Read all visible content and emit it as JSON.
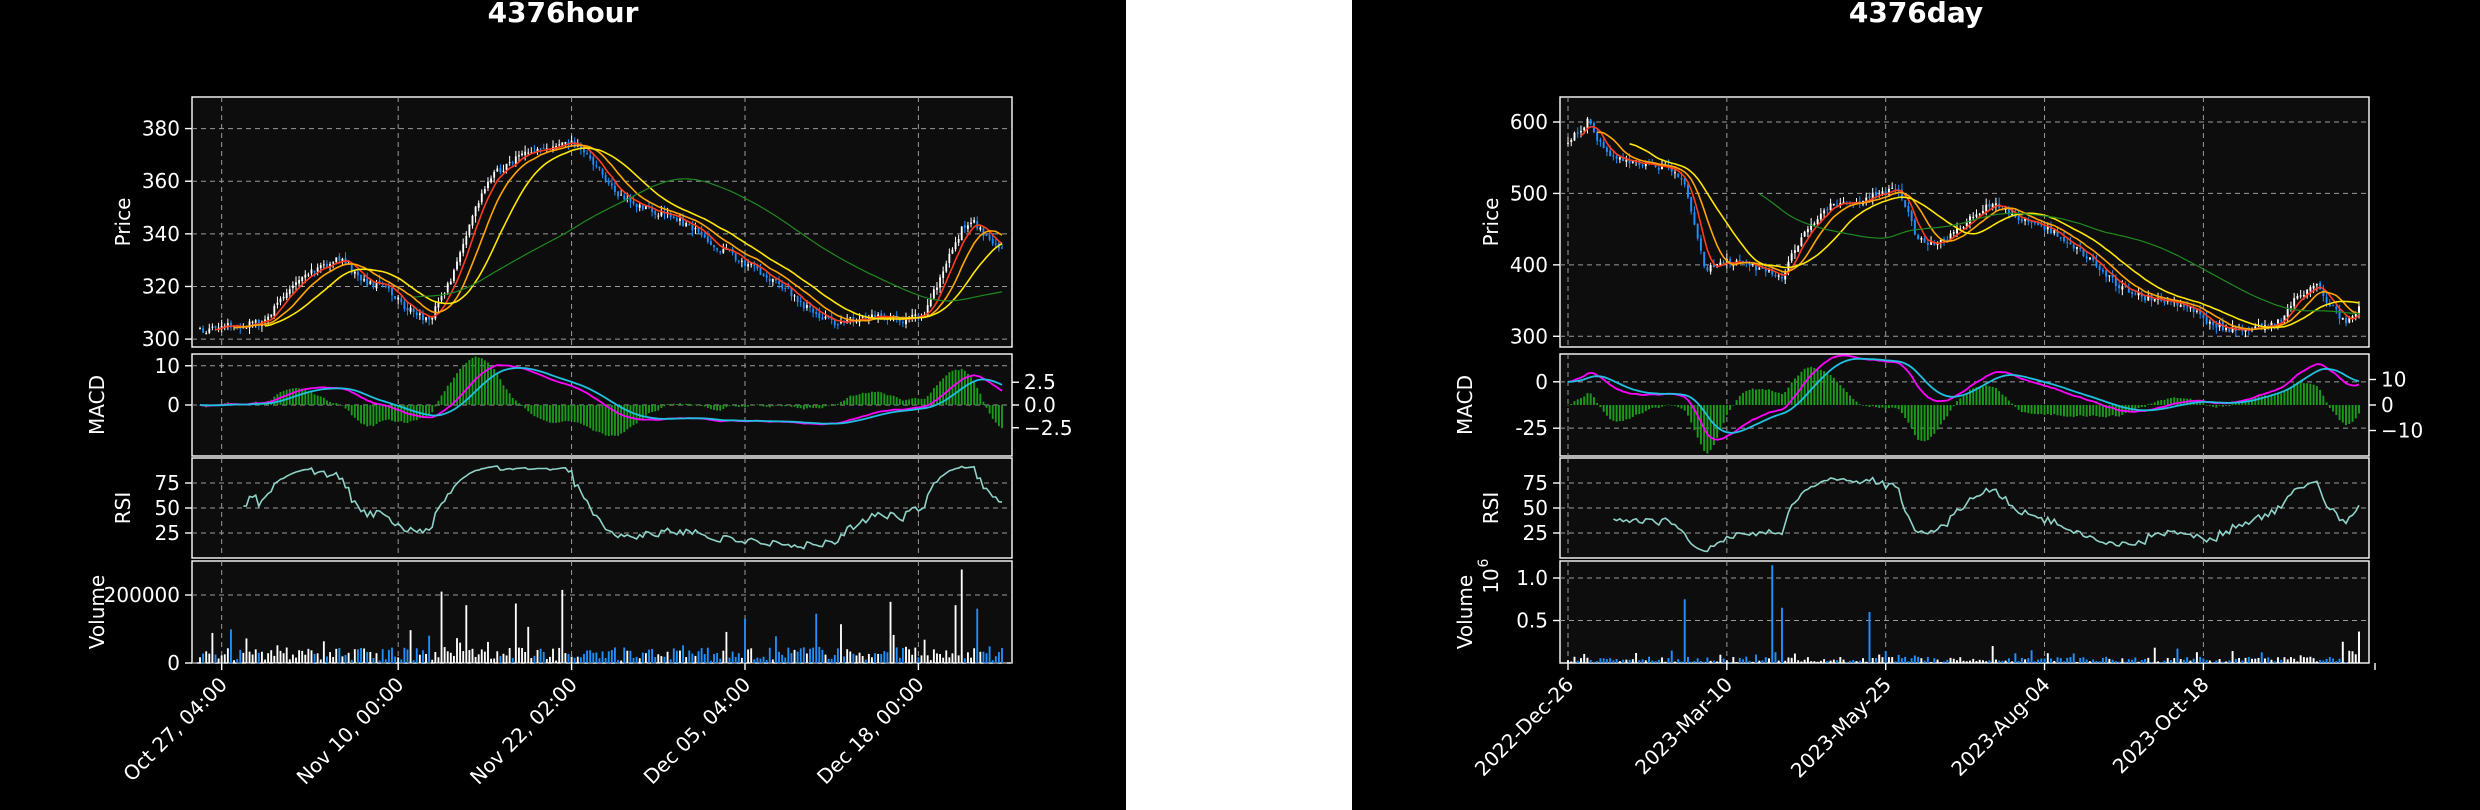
{
  "colors": {
    "background": "#000000",
    "panel_face": "#0d0d0d",
    "axis": "#ffffff",
    "grid": "#9a9a9a",
    "candle_up": "#ffffff",
    "candle_down": "#1e90ff",
    "ma_fast": "#ff3b1f",
    "ma_mid": "#ffa500",
    "ma_slow": "#ffe600",
    "ma_long": "#1f8a1f",
    "macd_line": "#ff00ff",
    "signal_line": "#20c0e0",
    "histogram": "#1a9c1a",
    "rsi_line": "#8fd3c8",
    "volume_up": "#ffffff",
    "volume_down": "#1e90ff"
  },
  "chart_data": [
    {
      "type": "candlestick",
      "title": "4376hour",
      "x_tick_labels": [
        "Oct 27, 04:00",
        "Nov 10, 00:00",
        "Nov 22, 02:00",
        "Dec 05, 04:00",
        "Dec 18, 00:00"
      ],
      "n_bars": 260,
      "x_tick_bar_index": [
        7,
        64,
        120,
        176,
        232
      ],
      "grid": true,
      "panels": {
        "price": {
          "ylabel": "Price",
          "ylim": [
            297,
            392
          ],
          "yticks": [
            300,
            320,
            340,
            360,
            380
          ],
          "close_anchors": [
            [
              0,
              303
            ],
            [
              10,
              305
            ],
            [
              20,
              306
            ],
            [
              28,
              318
            ],
            [
              38,
              327
            ],
            [
              46,
              331
            ],
            [
              52,
              322
            ],
            [
              60,
              320
            ],
            [
              66,
              312
            ],
            [
              74,
              307
            ],
            [
              82,
              325
            ],
            [
              88,
              348
            ],
            [
              94,
              362
            ],
            [
              104,
              370
            ],
            [
              114,
              373
            ],
            [
              120,
              375
            ],
            [
              126,
              368
            ],
            [
              134,
              356
            ],
            [
              142,
              350
            ],
            [
              152,
              347
            ],
            [
              160,
              341
            ],
            [
              166,
              335
            ],
            [
              172,
              332
            ],
            [
              180,
              326
            ],
            [
              188,
              320
            ],
            [
              196,
              312
            ],
            [
              204,
              306
            ],
            [
              210,
              307
            ],
            [
              218,
              309
            ],
            [
              226,
              307
            ],
            [
              234,
              310
            ],
            [
              240,
              326
            ],
            [
              246,
              342
            ],
            [
              250,
              344
            ],
            [
              256,
              336
            ],
            [
              259,
              334
            ]
          ],
          "moving_averages": [
            {
              "name": "MA fast",
              "window": 6,
              "color_key": "ma_fast"
            },
            {
              "name": "MA mid",
              "window": 12,
              "color_key": "ma_mid"
            },
            {
              "name": "MA slow",
              "window": 22,
              "color_key": "ma_slow"
            },
            {
              "name": "MA long",
              "window": 70,
              "color_key": "ma_long"
            }
          ]
        },
        "macd": {
          "ylabel": "MACD",
          "ylim": [
            -13,
            13
          ],
          "yticks": [
            0,
            10
          ],
          "right_ylim": [
            -5.6,
            5.6
          ],
          "right_yticks": [
            "2.5",
            "0.0",
            "−2.5"
          ],
          "right_ytick_values": [
            2.5,
            0.0,
            -2.5
          ]
        },
        "rsi": {
          "ylabel": "RSI",
          "ylim": [
            0,
            100
          ],
          "yticks": [
            25,
            50,
            75
          ],
          "start_index": 14
        },
        "volume": {
          "ylabel": "Volume",
          "ylim": [
            0,
            300000
          ],
          "yticks": [
            0,
            200000
          ],
          "ytick_labels": [
            "0",
            "200000"
          ],
          "typical": 25000,
          "peaks": [
            [
              78,
              210000
            ],
            [
              86,
              170000
            ],
            [
              102,
              175000
            ],
            [
              117,
              215000
            ],
            [
              176,
              130000
            ],
            [
              199,
              145000
            ],
            [
              223,
              180000
            ],
            [
              244,
              170000
            ],
            [
              246,
              275000
            ],
            [
              251,
              160000
            ]
          ]
        }
      }
    },
    {
      "type": "candlestick",
      "title": "4376day",
      "x_tick_labels": [
        "2022-Dec-26",
        "2023-Mar-10",
        "2023-May-25",
        "2023-Aug-04",
        "2023-Oct-18"
      ],
      "n_bars": 245,
      "x_tick_bar_index": [
        0,
        49,
        98,
        147,
        196
      ],
      "grid": true,
      "panels": {
        "price": {
          "ylabel": "Price",
          "ylim": [
            285,
            635
          ],
          "yticks": [
            300,
            400,
            500,
            600
          ],
          "close_anchors": [
            [
              0,
              575
            ],
            [
              6,
              600
            ],
            [
              12,
              555
            ],
            [
              22,
              540
            ],
            [
              32,
              535
            ],
            [
              36,
              515
            ],
            [
              42,
              395
            ],
            [
              50,
              405
            ],
            [
              60,
              395
            ],
            [
              66,
              385
            ],
            [
              72,
              440
            ],
            [
              80,
              480
            ],
            [
              90,
              490
            ],
            [
              96,
              500
            ],
            [
              102,
              505
            ],
            [
              108,
              435
            ],
            [
              114,
              430
            ],
            [
              118,
              440
            ],
            [
              124,
              465
            ],
            [
              130,
              485
            ],
            [
              136,
              475
            ],
            [
              142,
              460
            ],
            [
              150,
              445
            ],
            [
              158,
              420
            ],
            [
              164,
              395
            ],
            [
              170,
              370
            ],
            [
              178,
              355
            ],
            [
              186,
              350
            ],
            [
              192,
              340
            ],
            [
              198,
              318
            ],
            [
              206,
              308
            ],
            [
              214,
              312
            ],
            [
              220,
              320
            ],
            [
              224,
              350
            ],
            [
              230,
              375
            ],
            [
              236,
              340
            ],
            [
              240,
              315
            ],
            [
              244,
              340
            ]
          ],
          "moving_averages": [
            {
              "name": "MA fast",
              "window": 5,
              "color_key": "ma_fast"
            },
            {
              "name": "MA mid",
              "window": 10,
              "color_key": "ma_mid"
            },
            {
              "name": "MA slow",
              "window": 20,
              "color_key": "ma_slow"
            },
            {
              "name": "MA long",
              "window": 60,
              "color_key": "ma_long"
            }
          ]
        },
        "macd": {
          "ylabel": "MACD",
          "ylim": [
            -40,
            15
          ],
          "yticks": [
            0,
            -25
          ],
          "right_ylim": [
            -20,
            20
          ],
          "right_yticks": [
            "10",
            "0",
            "−10"
          ],
          "right_ytick_values": [
            10,
            0,
            -10
          ]
        },
        "rsi": {
          "ylabel": "RSI",
          "ylim": [
            0,
            100
          ],
          "yticks": [
            25,
            50,
            75
          ],
          "start_index": 14
        },
        "volume": {
          "ylabel": "Volume",
          "ylabel_exponent": "10",
          "ylabel_exponent_power": "6",
          "ylim": [
            0,
            1200000
          ],
          "yticks": [
            500000,
            1000000
          ],
          "ytick_labels": [
            "0.5",
            "1.0"
          ],
          "typical": 40000,
          "peaks": [
            [
              36,
              750000
            ],
            [
              63,
              1150000
            ],
            [
              66,
              650000
            ],
            [
              93,
              600000
            ],
            [
              131,
              200000
            ],
            [
              143,
              150000
            ],
            [
              181,
              180000
            ],
            [
              188,
              170000
            ],
            [
              239,
              250000
            ],
            [
              244,
              370000
            ]
          ]
        }
      }
    }
  ]
}
